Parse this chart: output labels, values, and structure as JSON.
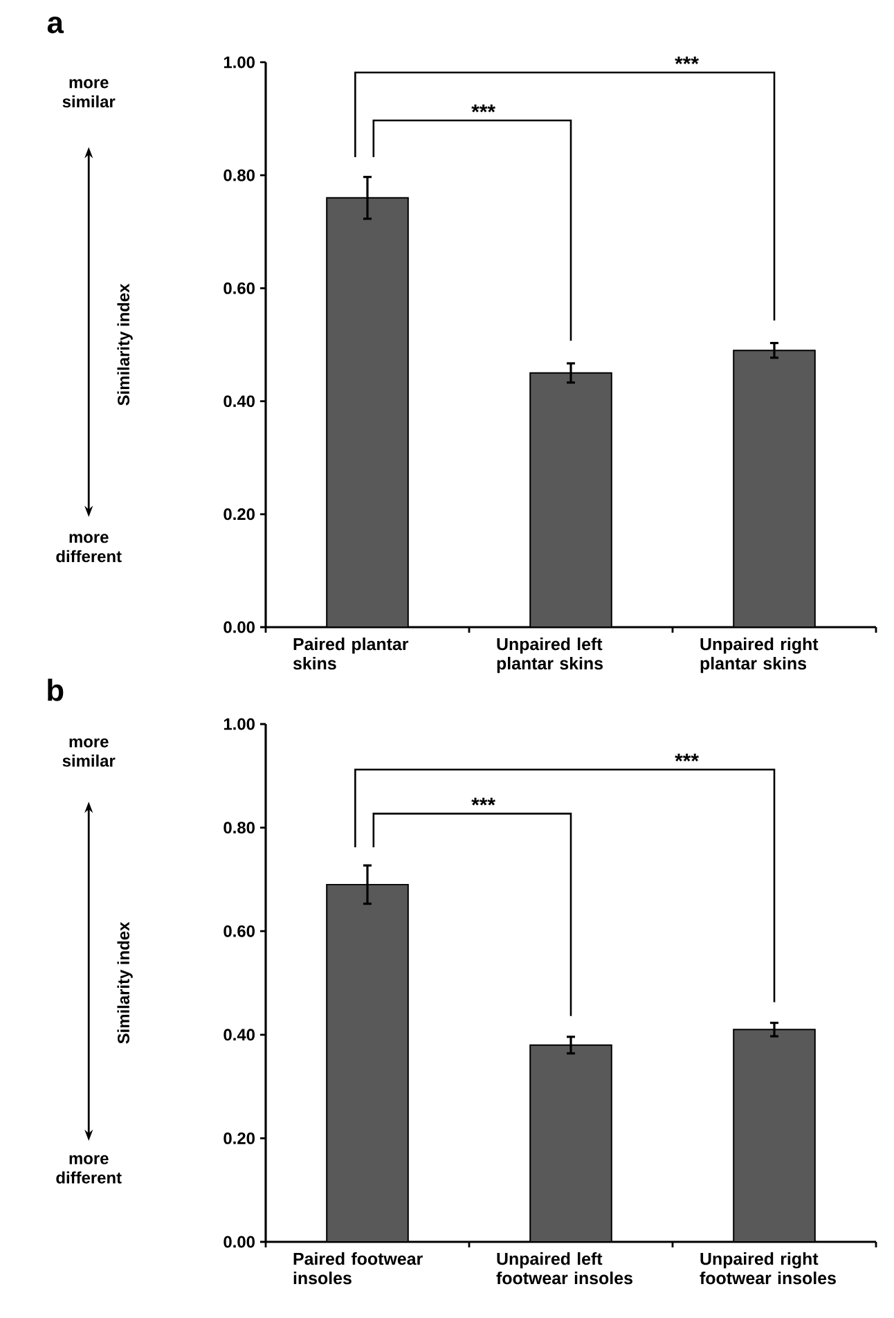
{
  "chart_data": [
    {
      "type": "bar",
      "title": "a",
      "ylabel": "Similarity index",
      "categories": [
        "Paired plantar skins",
        "Unpaired left plantar skins",
        "Unpaired right plantar skins"
      ],
      "values": [
        0.76,
        0.45,
        0.49
      ],
      "errors": [
        0.037,
        0.017,
        0.013
      ],
      "color": "#595959",
      "ylim": [
        0,
        1
      ],
      "yticks": [
        {
          "value": 0,
          "label": "0.00"
        },
        {
          "value": 0.2,
          "label": "0.20"
        },
        {
          "value": 0.4,
          "label": "0.40"
        },
        {
          "value": 0.6,
          "label": "0.60"
        },
        {
          "value": 0.8,
          "label": "0.80"
        },
        {
          "value": 1,
          "label": "1.00"
        }
      ],
      "annotations": [
        "more similar",
        "more different",
        "***",
        "***"
      ]
    },
    {
      "type": "bar",
      "title": "b",
      "ylabel": "Similarity index",
      "categories": [
        "Paired footwear insoles",
        "Unpaired left footwear insoles",
        "Unpaired right footwear insoles"
      ],
      "values": [
        0.69,
        0.38,
        0.41
      ],
      "errors": [
        0.037,
        0.016,
        0.013
      ],
      "color": "#595959",
      "ylim": [
        0,
        1
      ],
      "yticks": [
        {
          "value": 0,
          "label": "0.00"
        },
        {
          "value": 0.2,
          "label": "0.20"
        },
        {
          "value": 0.4,
          "label": "0.40"
        },
        {
          "value": 0.6,
          "label": "0.60"
        },
        {
          "value": 0.8,
          "label": "0.80"
        },
        {
          "value": 1,
          "label": "1.00"
        }
      ],
      "annotations": [
        "more similar",
        "more different",
        "***",
        "***"
      ]
    }
  ]
}
